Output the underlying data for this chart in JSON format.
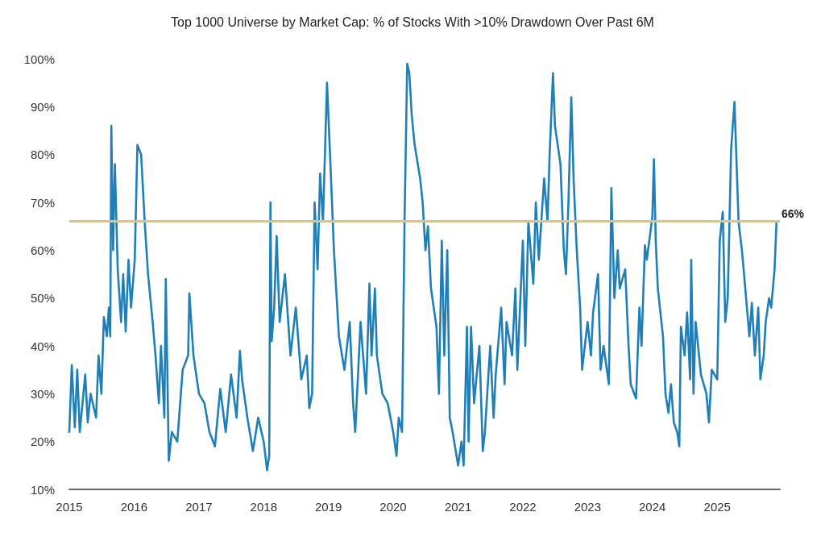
{
  "chart_data": {
    "type": "line",
    "title": "Top 1000 Universe by Market Cap: % of Stocks With >10% Drawdown Over Past 6M",
    "x": [
      "2015-01-01",
      "2015-01-15",
      "2015-02-01",
      "2015-02-15",
      "2015-03-01",
      "2015-04-01",
      "2015-04-15",
      "2015-05-01",
      "2015-06-01",
      "2015-06-15",
      "2015-07-01",
      "2015-07-15",
      "2015-08-01",
      "2015-08-12",
      "2015-08-20",
      "2015-08-26",
      "2015-09-05",
      "2015-09-15",
      "2015-10-01",
      "2015-10-20",
      "2015-11-01",
      "2015-11-15",
      "2015-12-01",
      "2015-12-15",
      "2016-01-05",
      "2016-01-20",
      "2016-02-10",
      "2016-03-01",
      "2016-03-20",
      "2016-04-15",
      "2016-05-01",
      "2016-05-20",
      "2016-06-01",
      "2016-06-20",
      "2016-06-28",
      "2016-07-15",
      "2016-08-01",
      "2016-09-01",
      "2016-10-01",
      "2016-11-01",
      "2016-11-08",
      "2016-12-01",
      "2017-01-01",
      "2017-02-01",
      "2017-03-01",
      "2017-04-01",
      "2017-05-01",
      "2017-06-01",
      "2017-07-01",
      "2017-08-01",
      "2017-08-20",
      "2017-09-01",
      "2017-10-01",
      "2017-11-01",
      "2017-12-01",
      "2018-01-01",
      "2018-01-20",
      "2018-02-01",
      "2018-02-08",
      "2018-02-15",
      "2018-03-01",
      "2018-03-15",
      "2018-04-01",
      "2018-05-01",
      "2018-06-01",
      "2018-07-01",
      "2018-08-01",
      "2018-09-01",
      "2018-09-15",
      "2018-10-01",
      "2018-10-15",
      "2018-11-01",
      "2018-11-15",
      "2018-12-01",
      "2018-12-24",
      "2019-01-10",
      "2019-02-01",
      "2019-03-01",
      "2019-04-01",
      "2019-05-01",
      "2019-05-20",
      "2019-06-01",
      "2019-07-01",
      "2019-08-01",
      "2019-08-20",
      "2019-09-01",
      "2019-09-20",
      "2019-10-01",
      "2019-11-01",
      "2019-12-01",
      "2020-01-01",
      "2020-01-20",
      "2020-02-01",
      "2020-02-20",
      "2020-03-05",
      "2020-03-20",
      "2020-04-01",
      "2020-04-15",
      "2020-05-01",
      "2020-06-01",
      "2020-06-15",
      "2020-07-01",
      "2020-07-15",
      "2020-08-01",
      "2020-09-01",
      "2020-09-15",
      "2020-10-01",
      "2020-10-15",
      "2020-11-01",
      "2020-11-15",
      "2020-12-01",
      "2021-01-01",
      "2021-01-20",
      "2021-02-01",
      "2021-02-20",
      "2021-03-01",
      "2021-03-15",
      "2021-04-01",
      "2021-05-01",
      "2021-05-20",
      "2021-06-01",
      "2021-07-01",
      "2021-07-20",
      "2021-08-01",
      "2021-09-01",
      "2021-09-20",
      "2021-10-01",
      "2021-11-01",
      "2021-11-20",
      "2021-12-01",
      "2022-01-01",
      "2022-01-15",
      "2022-02-01",
      "2022-03-01",
      "2022-03-15",
      "2022-04-01",
      "2022-05-01",
      "2022-05-20",
      "2022-06-01",
      "2022-06-20",
      "2022-07-01",
      "2022-08-01",
      "2022-08-20",
      "2022-09-01",
      "2022-09-15",
      "2022-10-01",
      "2022-10-15",
      "2022-11-01",
      "2022-11-20",
      "2022-12-01",
      "2023-01-01",
      "2023-01-20",
      "2023-02-01",
      "2023-03-01",
      "2023-03-15",
      "2023-04-01",
      "2023-05-01",
      "2023-05-15",
      "2023-06-01",
      "2023-06-20",
      "2023-07-01",
      "2023-08-01",
      "2023-08-20",
      "2023-09-01",
      "2023-10-01",
      "2023-10-20",
      "2023-11-01",
      "2023-11-20",
      "2023-12-01",
      "2024-01-01",
      "2024-01-10",
      "2024-01-20",
      "2024-02-01",
      "2024-03-01",
      "2024-03-15",
      "2024-04-01",
      "2024-04-15",
      "2024-05-01",
      "2024-05-20",
      "2024-06-01",
      "2024-06-10",
      "2024-07-01",
      "2024-07-15",
      "2024-08-01",
      "2024-08-07",
      "2024-08-20",
      "2024-09-01",
      "2024-10-01",
      "2024-11-01",
      "2024-11-15",
      "2024-12-01",
      "2025-01-01",
      "2025-01-15",
      "2025-02-01",
      "2025-02-15",
      "2025-03-01",
      "2025-03-20",
      "2025-04-08",
      "2025-04-20",
      "2025-05-01",
      "2025-05-20",
      "2025-06-01",
      "2025-07-01",
      "2025-07-15",
      "2025-08-01",
      "2025-08-20",
      "2025-09-01",
      "2025-09-20",
      "2025-10-01",
      "2025-10-20",
      "2025-11-01",
      "2025-11-20",
      "2025-12-01"
    ],
    "series": [
      {
        "color": "#1f7fb8",
        "values": [
          22,
          36,
          23,
          35,
          22,
          34,
          24,
          30,
          25,
          38,
          30,
          46,
          42,
          48,
          42,
          86,
          60,
          78,
          56,
          45,
          55,
          43,
          58,
          48,
          58,
          82,
          80,
          66,
          55,
          45,
          38,
          28,
          40,
          25,
          54,
          16,
          22,
          20,
          35,
          38,
          51,
          38,
          30,
          28,
          22,
          19,
          31,
          22,
          34,
          25,
          39,
          33,
          25,
          18,
          25,
          20,
          14,
          17,
          70,
          41,
          48,
          63,
          45,
          55,
          38,
          48,
          33,
          38,
          27,
          30,
          70,
          56,
          76,
          66,
          95,
          80,
          60,
          42,
          35,
          45,
          28,
          22,
          45,
          30,
          53,
          38,
          52,
          38,
          30,
          28,
          22,
          17,
          25,
          22,
          66,
          99,
          97,
          88,
          82,
          75,
          70,
          60,
          65,
          52,
          44,
          30,
          62,
          38,
          60,
          25,
          22,
          15,
          20,
          15,
          44,
          20,
          44,
          28,
          40,
          18,
          22,
          40,
          25,
          34,
          48,
          32,
          45,
          38,
          52,
          35,
          62,
          40,
          66,
          53,
          70,
          58,
          75,
          66,
          80,
          97,
          86,
          78,
          60,
          55,
          70,
          92,
          74,
          60,
          48,
          35,
          45,
          38,
          47,
          55,
          35,
          40,
          32,
          73,
          50,
          60,
          52,
          56,
          40,
          32,
          29,
          48,
          40,
          61,
          58,
          67,
          79,
          62,
          52,
          42,
          30,
          26,
          32,
          24,
          22,
          19,
          44,
          38,
          47,
          33,
          58,
          30,
          45,
          34,
          30,
          24,
          35,
          33,
          62,
          68,
          45,
          50,
          81,
          91,
          78,
          66,
          60,
          55,
          42,
          49,
          38,
          48,
          33,
          38,
          45,
          50,
          48,
          56,
          66
        ]
      }
    ],
    "xlim": [
      "2015-01-01",
      "2025-12-20"
    ],
    "xticks": [
      "2015",
      "2016",
      "2017",
      "2018",
      "2019",
      "2020",
      "2021",
      "2022",
      "2023",
      "2024",
      "2025"
    ],
    "ylim": [
      10,
      100
    ],
    "yticks": [
      {
        "value": 10,
        "label": "10%"
      },
      {
        "value": 20,
        "label": "20%"
      },
      {
        "value": 30,
        "label": "30%"
      },
      {
        "value": 40,
        "label": "40%"
      },
      {
        "value": 50,
        "label": "50%"
      },
      {
        "value": 60,
        "label": "60%"
      },
      {
        "value": 70,
        "label": "70%"
      },
      {
        "value": 80,
        "label": "80%"
      },
      {
        "value": 90,
        "label": "90%"
      },
      {
        "value": 100,
        "label": "100%"
      }
    ],
    "ref_lines": [
      {
        "axis": "y",
        "value": 66,
        "label": "66%",
        "color": "#e3c27a"
      }
    ],
    "grid": false,
    "marker": "none",
    "line_style": "solid"
  }
}
